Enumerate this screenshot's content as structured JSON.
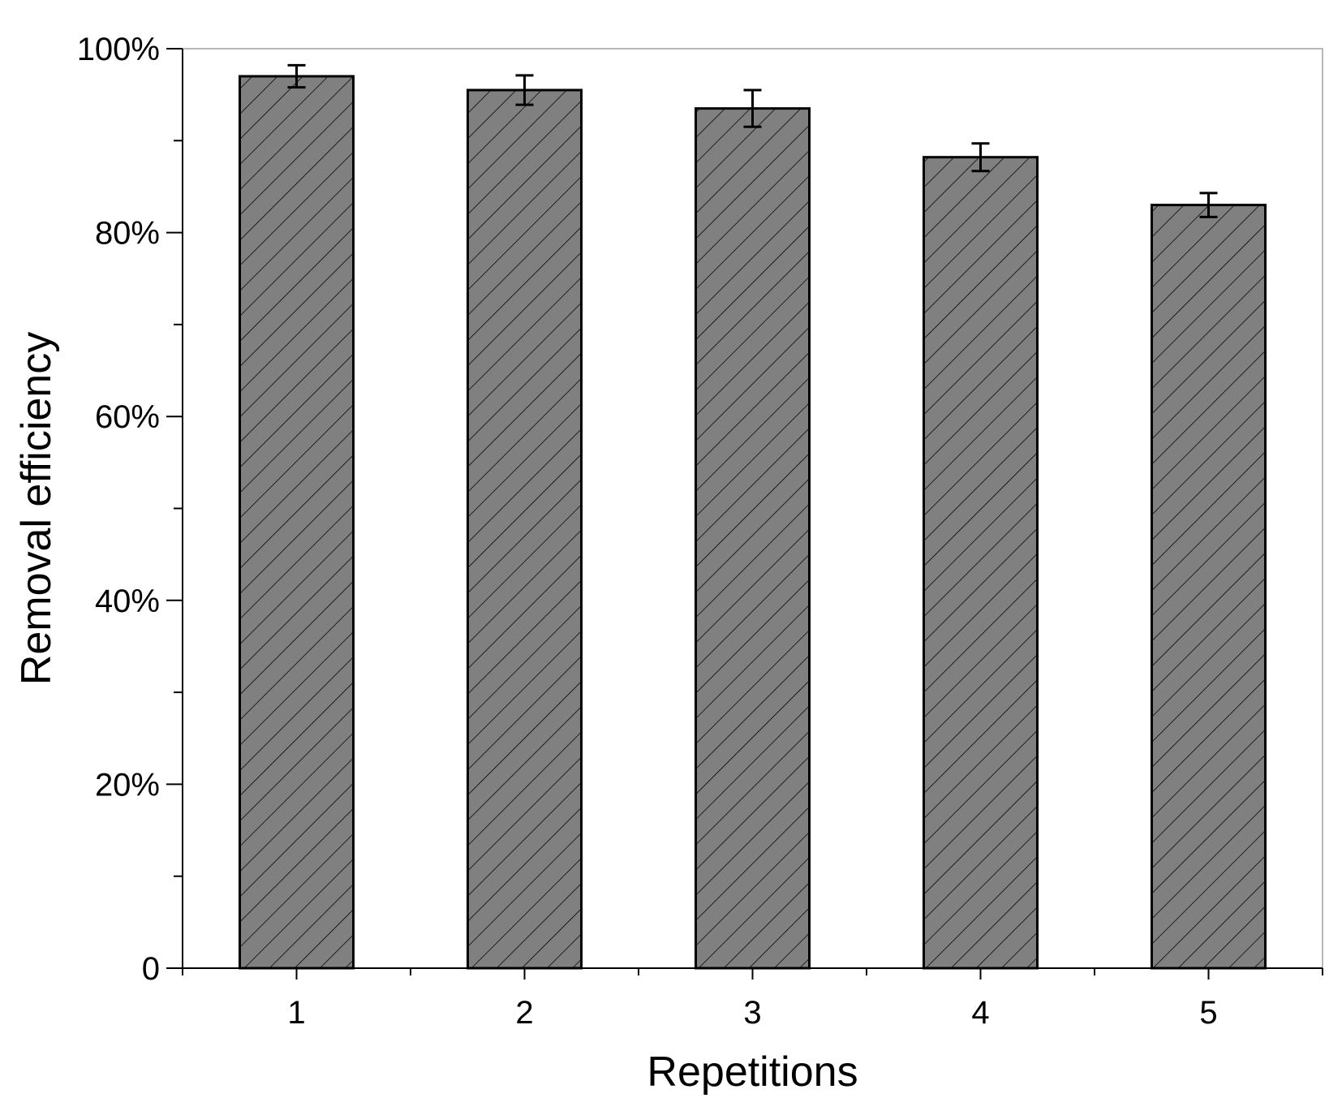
{
  "chart_data": {
    "type": "bar",
    "xlabel": "Repetitions",
    "ylabel": "Removal efficiency",
    "categories": [
      "1",
      "2",
      "3",
      "4",
      "5"
    ],
    "values": [
      97.0,
      95.5,
      93.5,
      88.2,
      83.0
    ],
    "errors": [
      1.2,
      1.6,
      2.0,
      1.5,
      1.3
    ],
    "ylim": [
      0,
      100
    ],
    "yticks": [
      {
        "value": 0,
        "label": "0"
      },
      {
        "value": 20,
        "label": "20%"
      },
      {
        "value": 40,
        "label": "40%"
      },
      {
        "value": 60,
        "label": "60%"
      },
      {
        "value": 80,
        "label": "80%"
      },
      {
        "value": 100,
        "label": "100%"
      }
    ],
    "yminor_ticks": [
      10,
      30,
      50,
      70,
      90
    ],
    "grid": false,
    "legend": "none",
    "colors": {
      "bar_fill": "#808080",
      "bar_edge": "#000000",
      "hatch": "#000000",
      "axis": "#000000",
      "frame": "#a0a0a0"
    }
  }
}
